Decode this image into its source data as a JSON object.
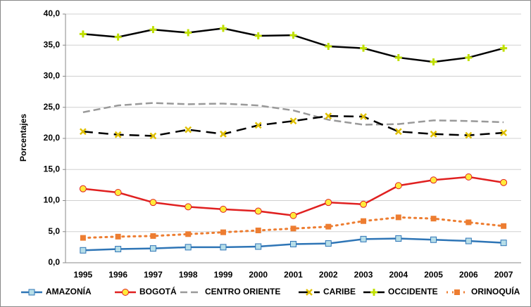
{
  "chart_data": {
    "type": "line",
    "y_label": "Porcentajes",
    "categories": [
      "1995",
      "1996",
      "1997",
      "1998",
      "1999",
      "2000",
      "2001",
      "2002",
      "2003",
      "2004",
      "2005",
      "2006",
      "2007"
    ],
    "ylim": [
      0,
      40
    ],
    "yticks": [
      {
        "value": 0,
        "label": "0,0"
      },
      {
        "value": 5,
        "label": "5,0"
      },
      {
        "value": 10,
        "label": "10,0"
      },
      {
        "value": 15,
        "label": "15,0"
      },
      {
        "value": 20,
        "label": "20,0"
      },
      {
        "value": 25,
        "label": "25,0"
      },
      {
        "value": 30,
        "label": "30,0"
      },
      {
        "value": 35,
        "label": "35,0"
      },
      {
        "value": 40,
        "label": "40,0"
      }
    ],
    "grid": true,
    "legend": "bottom",
    "series": [
      {
        "name": "AMAZONÍA",
        "color": "#2e75b6",
        "line_style": "solid",
        "marker": "square",
        "marker_color": "#b7dee8",
        "values": [
          2.0,
          2.2,
          2.3,
          2.5,
          2.5,
          2.6,
          3.0,
          3.1,
          3.8,
          3.9,
          3.7,
          3.5,
          3.2
        ]
      },
      {
        "name": "BOGOTÁ",
        "color": "#e02020",
        "line_style": "solid",
        "marker": "circle",
        "marker_color": "#ffeb3b",
        "values": [
          11.9,
          11.3,
          9.7,
          9.0,
          8.6,
          8.3,
          7.6,
          9.7,
          9.4,
          12.4,
          13.3,
          13.8,
          12.9
        ]
      },
      {
        "name": "CENTRO ORIENTE",
        "color": "#999999",
        "line_style": "dashed",
        "marker": "none",
        "marker_color": "#999999",
        "values": [
          24.2,
          25.3,
          25.7,
          25.5,
          25.6,
          25.3,
          24.5,
          23.0,
          22.2,
          22.3,
          22.9,
          22.8,
          22.6
        ]
      },
      {
        "name": "CARIBE",
        "color": "#000000",
        "line_style": "longdash",
        "marker": "x",
        "marker_color": "#e0c000",
        "values": [
          21.1,
          20.6,
          20.4,
          21.4,
          20.7,
          22.1,
          22.8,
          23.6,
          23.5,
          21.1,
          20.7,
          20.5,
          20.9
        ]
      },
      {
        "name": "OCCIDENTE",
        "color": "#000000",
        "line_style": "solid",
        "marker": "plus",
        "marker_color": "#c0e000",
        "values": [
          36.8,
          36.3,
          37.5,
          37.0,
          37.7,
          36.5,
          36.6,
          34.8,
          34.5,
          33.0,
          32.3,
          33.0,
          34.5
        ]
      },
      {
        "name": "ORINOQUÍA",
        "color": "#ed7d31",
        "line_style": "dotted",
        "marker": "square",
        "marker_color": "#ed7d31",
        "values": [
          4.0,
          4.2,
          4.3,
          4.6,
          4.9,
          5.2,
          5.5,
          5.8,
          6.7,
          7.3,
          7.1,
          6.5,
          5.9
        ]
      }
    ]
  }
}
